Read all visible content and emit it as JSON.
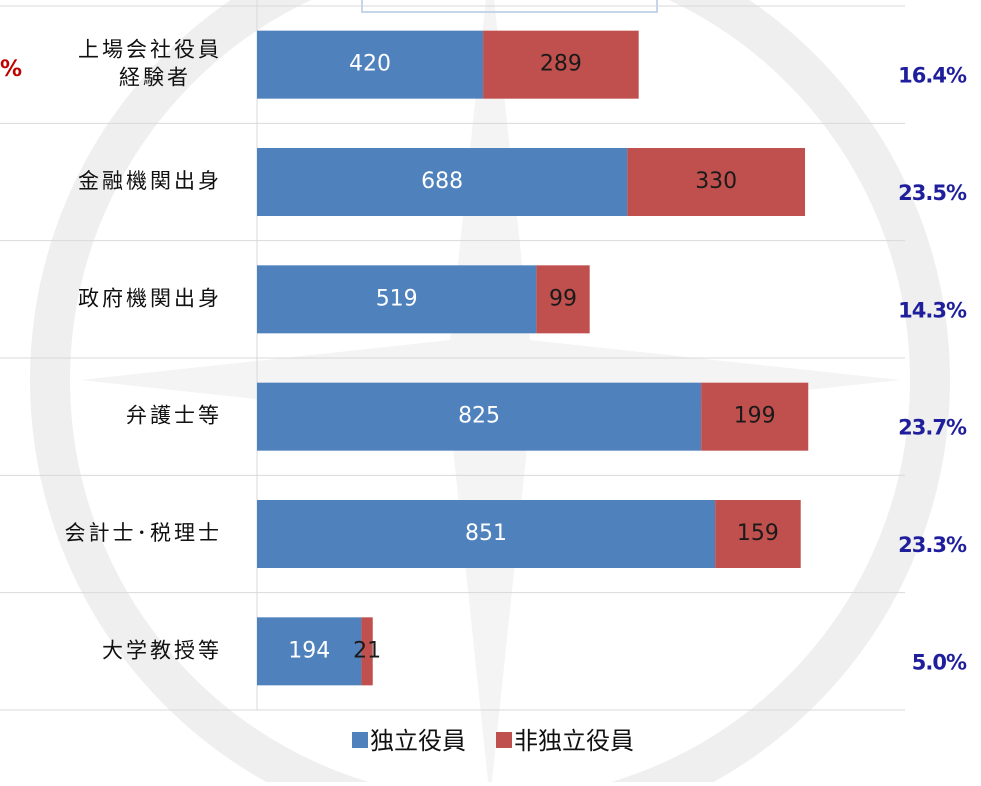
{
  "chart_data": {
    "type": "stacked-bar-horizontal",
    "categories": [
      "上場会社役員\n経験者",
      "金融機関出身",
      "政府機関出身",
      "弁護士等",
      "会計士･税理士",
      "大学教授等"
    ],
    "series": [
      {
        "name": "独立役員",
        "color": "#4f81bd",
        "label_color": "#ffffff",
        "values": [
          420,
          688,
          519,
          825,
          851,
          194
        ]
      },
      {
        "name": "非独立役員",
        "color": "#c0504d",
        "label_color": "#1a1a1a",
        "values": [
          289,
          330,
          99,
          199,
          159,
          21
        ]
      }
    ],
    "xlim": [
      0,
      1200
    ],
    "grid": true,
    "legend": "bottom",
    "annotations": [
      "16.4%",
      "23.5%",
      "14.3%",
      "23.7%",
      "23.3%",
      "5.0%"
    ],
    "annotation_color": "#1f1f9e",
    "left_note": "%",
    "left_note_color": "#c00000"
  }
}
